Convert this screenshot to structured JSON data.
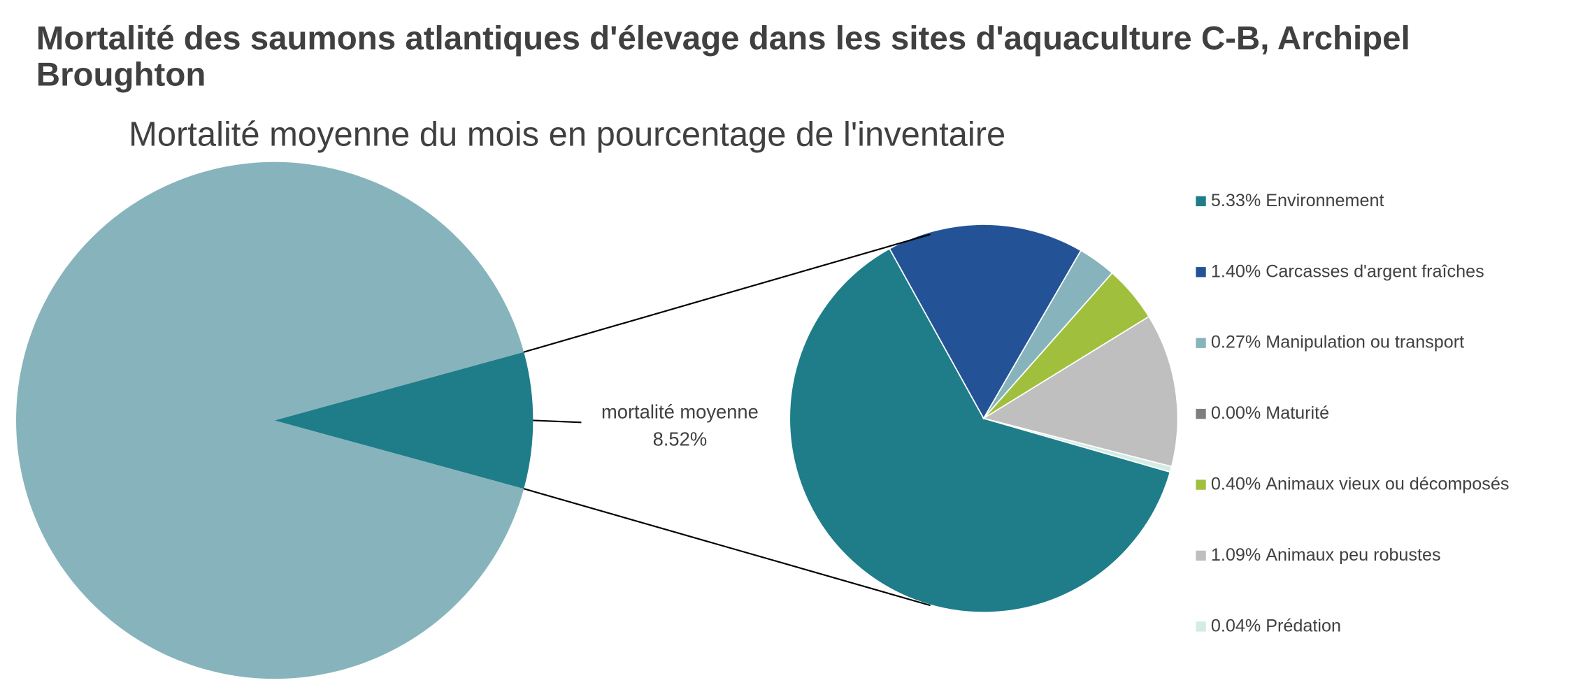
{
  "chart_data": {
    "type": "pie-of-pie",
    "title": "Mortalité des saumons atlantiques d'élevage dans les sites d'aquaculture C-B, Archipel Broughton",
    "subtitle": "Mortalité moyenne du mois en pourcentage de l'inventaire",
    "main": {
      "categories": [
        null,
        "mortalité moyenne"
      ],
      "values": [
        91.48,
        8.52
      ],
      "value_labels": [
        null,
        "8.52%"
      ],
      "colors": [
        "#87b4bc",
        "#1e7d89"
      ]
    },
    "categories": [
      "Environnement",
      "Carcasses d'argent fraîches",
      "Manipulation ou transport",
      "Maturité",
      "Animaux vieux ou décomposés",
      "Animaux peu robustes",
      "Prédation"
    ],
    "values": [
      5.33,
      1.4,
      0.27,
      0.0,
      0.4,
      1.09,
      0.04
    ],
    "value_labels": [
      "5.33%",
      "1.40%",
      "0.27%",
      "0.00%",
      "0.40%",
      "1.09%",
      "0.04%"
    ],
    "colors": [
      "#1e7d89",
      "#235396",
      "#87b4bc",
      "#7f7f7f",
      "#a0c03d",
      "#bfbfbf",
      "#d4ebe6"
    ],
    "legend": "right"
  }
}
